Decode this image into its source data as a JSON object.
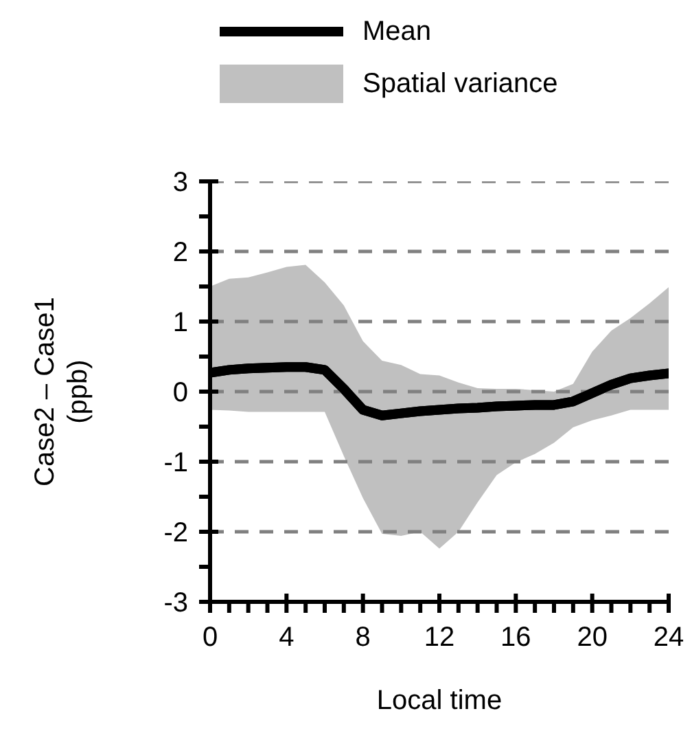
{
  "chart_data": {
    "type": "line",
    "xlabel": "Local time",
    "ylabel": "Case2 – Case1\n(ppb)",
    "x": [
      0,
      1,
      2,
      3,
      4,
      5,
      6,
      7,
      8,
      9,
      10,
      11,
      12,
      13,
      14,
      15,
      16,
      17,
      18,
      19,
      20,
      21,
      22,
      23,
      24
    ],
    "series": [
      {
        "name": "Mean",
        "type": "line",
        "color": "#000000",
        "values": [
          0.27,
          0.31,
          0.33,
          0.34,
          0.35,
          0.35,
          0.31,
          0.04,
          -0.26,
          -0.34,
          -0.31,
          -0.28,
          -0.26,
          -0.24,
          -0.23,
          -0.21,
          -0.2,
          -0.19,
          -0.19,
          -0.14,
          -0.02,
          0.1,
          0.19,
          0.23,
          0.26
        ]
      },
      {
        "name": "Spatial variance",
        "type": "area",
        "color": "#c0c0c0",
        "values": [
          null,
          null,
          null,
          null,
          null,
          null,
          null,
          null,
          null,
          null,
          null,
          null,
          null,
          null,
          null,
          null,
          null,
          null,
          null,
          null,
          null,
          null,
          null,
          null,
          null
        ],
        "lower": [
          -0.26,
          -0.27,
          -0.29,
          -0.29,
          -0.29,
          -0.29,
          -0.29,
          -0.92,
          -1.52,
          -2.03,
          -2.06,
          -2.0,
          -2.24,
          -2.0,
          -1.58,
          -1.19,
          -1.01,
          -0.89,
          -0.73,
          -0.51,
          -0.41,
          -0.34,
          -0.26,
          -0.26,
          -0.26
        ],
        "upper": [
          1.5,
          1.61,
          1.63,
          1.7,
          1.78,
          1.81,
          1.56,
          1.23,
          0.72,
          0.44,
          0.38,
          0.25,
          0.23,
          0.13,
          0.05,
          0.04,
          0.04,
          0.02,
          0.0,
          0.11,
          0.57,
          0.87,
          1.05,
          1.26,
          1.49
        ]
      }
    ],
    "xlim": [
      0,
      24
    ],
    "xticks": [
      0,
      {
        "value": 1,
        "label": null
      },
      {
        "value": 2,
        "label": null
      },
      {
        "value": 3,
        "label": null
      },
      4,
      {
        "value": 5,
        "label": null
      },
      {
        "value": 6,
        "label": null
      },
      {
        "value": 7,
        "label": null
      },
      8,
      {
        "value": 9,
        "label": null
      },
      {
        "value": 10,
        "label": null
      },
      {
        "value": 11,
        "label": null
      },
      12,
      {
        "value": 13,
        "label": null
      },
      {
        "value": 14,
        "label": null
      },
      {
        "value": 15,
        "label": null
      },
      16,
      {
        "value": 17,
        "label": null
      },
      {
        "value": 18,
        "label": null
      },
      {
        "value": 19,
        "label": null
      },
      20,
      {
        "value": 21,
        "label": null
      },
      {
        "value": 22,
        "label": null
      },
      {
        "value": 23,
        "label": null
      },
      24
    ],
    "ylim": [
      -3,
      3
    ],
    "yticks": [
      -3,
      {
        "value": -2.5,
        "label": null
      },
      -2,
      {
        "value": -1.5,
        "label": null
      },
      -1,
      {
        "value": -0.5,
        "label": null
      },
      0,
      {
        "value": 0.5,
        "label": null
      },
      1,
      {
        "value": 1.5,
        "label": null
      },
      2,
      {
        "value": 2.5,
        "label": null
      },
      3
    ],
    "grid": "y",
    "legend": "top",
    "marker": "none",
    "line_style": "solid"
  }
}
